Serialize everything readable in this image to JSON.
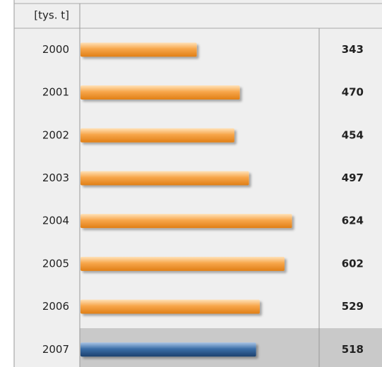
{
  "chart_data": {
    "type": "bar",
    "orientation": "horizontal",
    "unit_label": "[tys. t]",
    "categories": [
      "2000",
      "2001",
      "2002",
      "2003",
      "2004",
      "2005",
      "2006",
      "2007"
    ],
    "values": [
      343,
      470,
      454,
      497,
      624,
      602,
      529,
      518
    ],
    "colors": [
      "#f39a32",
      "#f39a32",
      "#f39a32",
      "#f39a32",
      "#f39a32",
      "#f39a32",
      "#f39a32",
      "#2f5f95"
    ],
    "xlim": [
      0,
      700
    ]
  }
}
